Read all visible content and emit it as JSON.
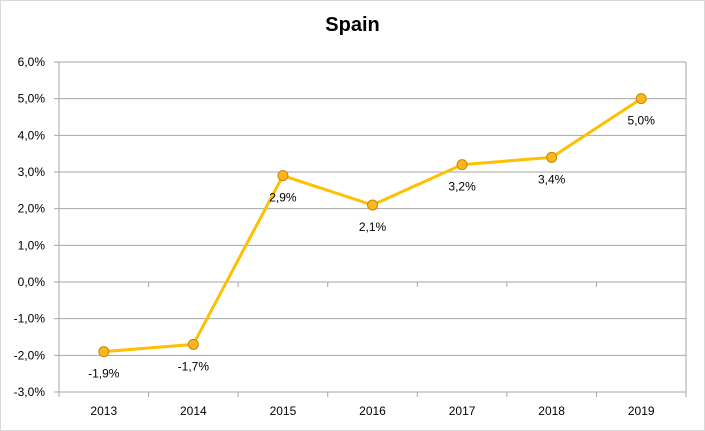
{
  "chart_data": {
    "type": "line",
    "title": "Spain",
    "xlabel": "",
    "ylabel": "",
    "categories": [
      "2013",
      "2014",
      "2015",
      "2016",
      "2017",
      "2018",
      "2019"
    ],
    "series": [
      {
        "values": [
          -1.9,
          -1.7,
          2.9,
          2.1,
          3.2,
          3.4,
          5.0
        ],
        "data_labels": [
          "-1,9%",
          "-1,7%",
          "2,9%",
          "2,1%",
          "3,2%",
          "3,4%",
          "5,0%"
        ],
        "color": "#FFC000",
        "marker_fill": "#FFB61E",
        "marker_stroke": "#C08800"
      }
    ],
    "ylim": [
      -3,
      6
    ],
    "yticks": [
      6,
      5,
      4,
      3,
      2,
      1,
      0,
      -1,
      -2,
      -3
    ],
    "ytick_labels": [
      "6,0%",
      "5,0%",
      "4,0%",
      "3,0%",
      "2,0%",
      "1,0%",
      "0,0%",
      "-1,0%",
      "-2,0%",
      "-3,0%"
    ],
    "grid": true,
    "grid_color": "#a6a6a6",
    "legend": "none"
  }
}
